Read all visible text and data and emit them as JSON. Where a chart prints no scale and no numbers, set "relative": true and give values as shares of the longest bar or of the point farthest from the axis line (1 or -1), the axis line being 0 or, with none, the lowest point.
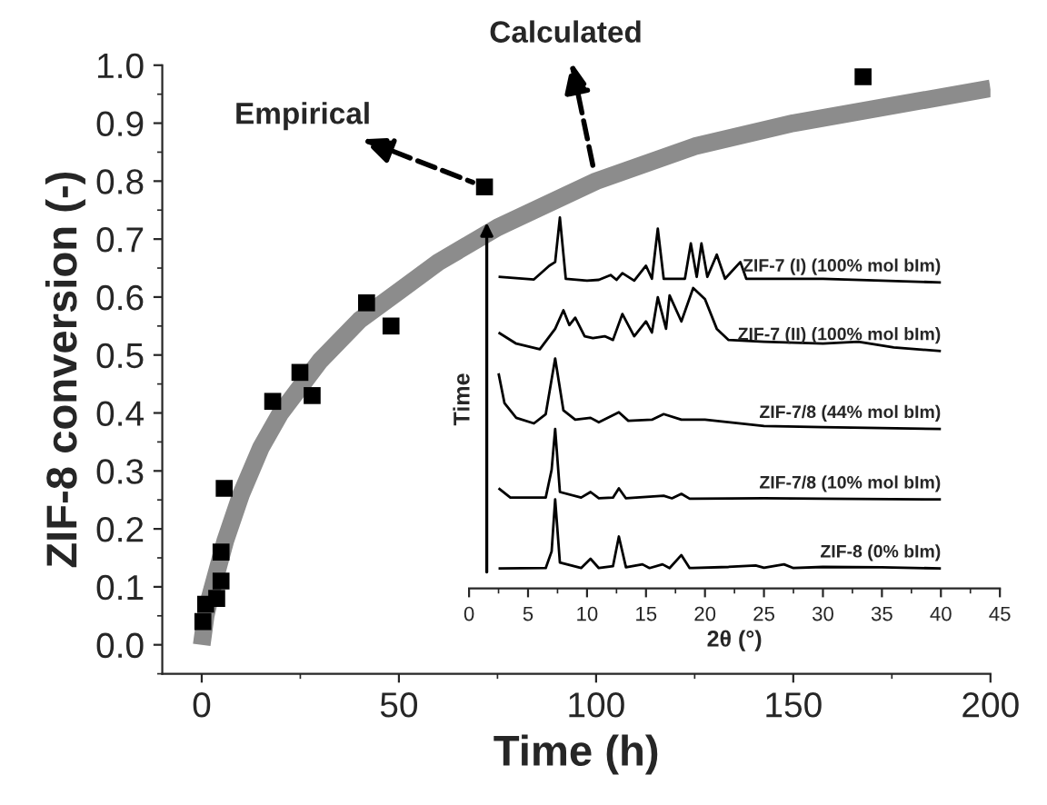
{
  "chart_data": [
    {
      "type": "scatter",
      "xlabel": "Time (h)",
      "ylabel": "ZIF-8 conversion (-)",
      "xlim": [
        -10,
        200
      ],
      "ylim": [
        -0.05,
        1.0
      ],
      "xticks": [
        0,
        50,
        100,
        150,
        200
      ],
      "yticks": [
        {
          "value": 0,
          "label": "0.0"
        },
        0.1,
        0.2,
        0.3,
        0.4,
        0.5,
        0.6,
        0.7,
        0.8,
        0.9,
        {
          "value": 1,
          "label": "1.0"
        }
      ],
      "marker": "none",
      "series": [
        {
          "name": "Calculated",
          "type": "line",
          "color": "#8c8c8c",
          "x": [
            0,
            1,
            2,
            4,
            6,
            10,
            15,
            20,
            30,
            40,
            50,
            60,
            75,
            100,
            125,
            150,
            175,
            200
          ],
          "values": [
            0.0,
            0.05,
            0.08,
            0.13,
            0.18,
            0.26,
            0.34,
            0.4,
            0.49,
            0.56,
            0.61,
            0.66,
            0.72,
            0.8,
            0.86,
            0.9,
            0.93,
            0.96
          ]
        },
        {
          "name": "Empirical",
          "type": "scatter",
          "marker": "square",
          "color": "#000000",
          "x": [
            0.3,
            1,
            3.8,
            4.9,
            4.9,
            5.7,
            18,
            24.9,
            28,
            41.8,
            48,
            71.7,
            167.7
          ],
          "values": [
            0.04,
            0.07,
            0.08,
            0.11,
            0.16,
            0.27,
            0.42,
            0.47,
            0.43,
            0.59,
            0.55,
            0.79,
            0.98
          ]
        }
      ],
      "grid": false
    },
    {
      "type": "line",
      "relative": true,
      "xlabel": "2θ (°)",
      "ylabel": "Time",
      "xlim": [
        0,
        45
      ],
      "xticks": [
        0,
        5,
        10,
        15,
        20,
        25,
        30,
        35,
        40,
        45
      ],
      "series": [
        {
          "name": "ZIF-8 (0% bIm)",
          "color": "#000000",
          "x": [
            2.5,
            6.5,
            7.0,
            7.3,
            7.7,
            9.5,
            10.3,
            11.0,
            12.2,
            12.7,
            13.3,
            14.7,
            15.3,
            16.4,
            17.0,
            18.0,
            18.7,
            22,
            24.3,
            25,
            26.7,
            27.5,
            30,
            35,
            40
          ],
          "values": [
            0.054,
            0.055,
            0.1,
            0.24,
            0.07,
            0.055,
            0.08,
            0.055,
            0.06,
            0.14,
            0.057,
            0.065,
            0.055,
            0.065,
            0.055,
            0.09,
            0.055,
            0.058,
            0.062,
            0.056,
            0.065,
            0.055,
            0.058,
            0.057,
            0.054
          ]
        },
        {
          "name": "ZIF-7/8 (10% mol bIm)",
          "color": "#000000",
          "x": [
            2.5,
            3.5,
            6.5,
            7.0,
            7.3,
            7.7,
            9.5,
            10.3,
            11.0,
            12.2,
            12.7,
            13.3,
            16.5,
            17.2,
            18.0,
            18.7,
            25,
            30,
            40
          ],
          "values": [
            0.27,
            0.245,
            0.245,
            0.32,
            0.43,
            0.26,
            0.245,
            0.26,
            0.243,
            0.245,
            0.27,
            0.243,
            0.25,
            0.243,
            0.255,
            0.242,
            0.243,
            0.242,
            0.24
          ]
        },
        {
          "name": "ZIF-7/8 (44% mol bIm)",
          "color": "#000000",
          "x": [
            2.5,
            3.0,
            4.0,
            5.5,
            6.5,
            7.3,
            8.0,
            9.0,
            10.3,
            11.0,
            12.7,
            13.5,
            15.5,
            16.5,
            18.0,
            20,
            25,
            30,
            40
          ],
          "values": [
            0.58,
            0.5,
            0.46,
            0.445,
            0.47,
            0.62,
            0.48,
            0.455,
            0.46,
            0.448,
            0.475,
            0.452,
            0.455,
            0.47,
            0.455,
            0.455,
            0.438,
            0.435,
            0.43
          ]
        },
        {
          "name": "ZIF-7 (II) (100% mol bIm)",
          "color": "#000000",
          "x": [
            2.5,
            4.0,
            6.0,
            7.3,
            8.0,
            8.5,
            9.0,
            9.8,
            10.5,
            11.5,
            12.2,
            13.0,
            14.0,
            15.0,
            15.5,
            16.0,
            16.7,
            17.0,
            18.0,
            19.0,
            20.0,
            21.0,
            22,
            25,
            30,
            33,
            36,
            40
          ],
          "values": [
            0.69,
            0.66,
            0.645,
            0.7,
            0.75,
            0.71,
            0.73,
            0.68,
            0.675,
            0.68,
            0.67,
            0.74,
            0.68,
            0.72,
            0.69,
            0.785,
            0.7,
            0.79,
            0.72,
            0.81,
            0.78,
            0.7,
            0.67,
            0.665,
            0.66,
            0.665,
            0.65,
            0.64
          ]
        },
        {
          "name": "ZIF-7 (I) (100% mol bIm)",
          "color": "#000000",
          "x": [
            2.5,
            5.5,
            6.8,
            7.3,
            7.7,
            8.2,
            10,
            11,
            12,
            12.5,
            13,
            14,
            15,
            15.5,
            16,
            16.5,
            17.5,
            18.3,
            18.8,
            19.3,
            19.7,
            20.2,
            21,
            21.7,
            23,
            23.5,
            25,
            30,
            35,
            40
          ],
          "values": [
            0.84,
            0.833,
            0.87,
            0.88,
            1.0,
            0.835,
            0.83,
            0.832,
            0.845,
            0.832,
            0.85,
            0.83,
            0.87,
            0.835,
            0.97,
            0.835,
            0.835,
            0.835,
            0.93,
            0.84,
            0.93,
            0.84,
            0.9,
            0.835,
            0.88,
            0.835,
            0.835,
            0.835,
            0.83,
            0.825
          ]
        }
      ]
    }
  ]
}
